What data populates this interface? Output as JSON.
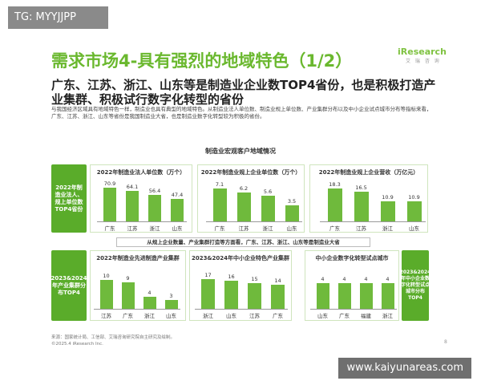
{
  "watermark_top": "TG: MYYJJPP",
  "watermark_bottom": "www.kaiyunareas.com",
  "logo": {
    "text": "iResearch",
    "sub": "艾 瑞 咨 询"
  },
  "title": "需求市场4-具有强烈的地域特色（1/2）",
  "subtitle": "广东、江苏、浙江、山东等是制造业企业数TOP4省份，也是积极打造产业集群、积极试行数字化转型的省份",
  "description": "与我国经济区域具有地域特色一样，制造业也具有典型的地域特色。从制造业法人单位数、制造业规上单位数、产业集群分布以及中小企业试点城市分布等指标来看，广东、江苏、浙江、山东等省份是我国制造业大省，也是制造业数字化转型较为积极的省份。",
  "section_title": "制造业宏观客户地域情况",
  "left_label_top": "2022年制造业法人、规上单位数TOP4省份",
  "left_label_bottom": "2023&2024年产业集群分布TOP4",
  "right_label_bottom": "2023&2024年中小企业数字化转型试点城市分布TOP4",
  "mid_banner": "从规上企业数量、产业集群打造等方面看，广东、江苏、浙江、山东等是制造业大省",
  "footer_source": "来源：国家统计局、工信部、艾瑞咨询研究院自主研究及绘制。",
  "footer_copy": "©2025.4 iResearch Inc.",
  "page_number": "8",
  "chart_data": [
    {
      "type": "bar",
      "title": "2022年制造业法人单位数（万个）",
      "categories": [
        "广东",
        "江苏",
        "浙江",
        "山东"
      ],
      "values": [
        70.9,
        64.1,
        56.4,
        47.4
      ],
      "ylim": [
        0,
        75
      ]
    },
    {
      "type": "bar",
      "title": "2022年制造业规上企业单位数（万个）",
      "categories": [
        "广东",
        "江苏",
        "浙江",
        "山东"
      ],
      "values": [
        7.1,
        6.2,
        5.6,
        3.5
      ],
      "ylim": [
        0,
        7.6
      ]
    },
    {
      "type": "bar",
      "title": "2022年制造业规上企业营收（万亿元）",
      "categories": [
        "广东",
        "江苏",
        "浙江",
        "山东"
      ],
      "values": [
        18.3,
        16.5,
        10.9,
        10.9
      ],
      "ylim": [
        0,
        19.5
      ]
    },
    {
      "type": "bar",
      "title": "2022年制造业先进制造产业集群",
      "categories": [
        "江苏",
        "广东",
        "浙江",
        "山东"
      ],
      "values": [
        10,
        9,
        4,
        3
      ],
      "ylim": [
        0,
        11
      ]
    },
    {
      "type": "bar",
      "title": "2023&2024年中小企业特色产业集群",
      "categories": [
        "浙江",
        "山东",
        "江苏",
        "广东"
      ],
      "values": [
        17,
        16,
        15,
        14
      ],
      "ylim": [
        0,
        18.5
      ]
    },
    {
      "type": "bar",
      "title": "中小企业数字化转型试点城市",
      "categories": [
        "山东",
        "广东",
        "福建",
        "浙江"
      ],
      "values": [
        4,
        4,
        4,
        4
      ],
      "ylim": [
        0,
        5
      ]
    }
  ]
}
